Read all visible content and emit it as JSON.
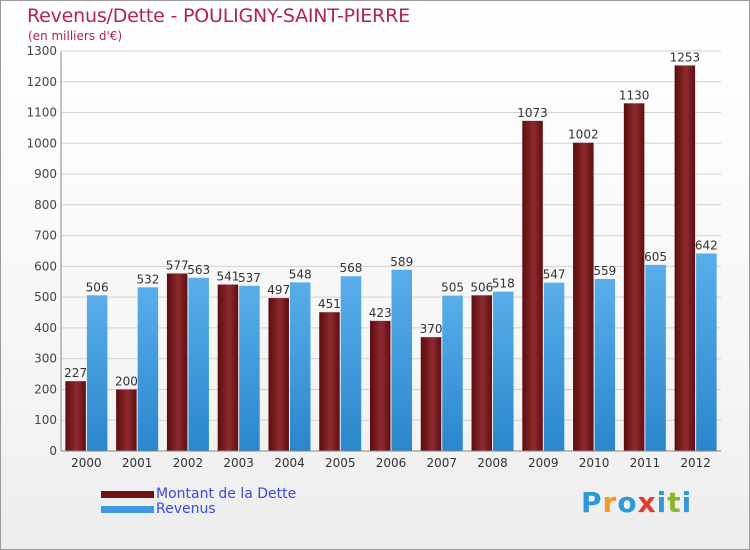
{
  "chart_data": {
    "type": "bar",
    "title": "Revenus/Dette - POULIGNY-SAINT-PIERRE",
    "subtitle": "(en milliers d'€)",
    "xlabel": "",
    "ylabel": "",
    "categories": [
      "2000",
      "2001",
      "2002",
      "2003",
      "2004",
      "2005",
      "2006",
      "2007",
      "2008",
      "2009",
      "2010",
      "2011",
      "2012"
    ],
    "series": [
      {
        "name": "Montant de la Dette",
        "color": "#6e1216",
        "values": [
          227,
          200,
          577,
          541,
          497,
          451,
          423,
          370,
          506,
          1073,
          1002,
          1130,
          1253
        ]
      },
      {
        "name": "Revenus",
        "color": "#3f9ae2",
        "values": [
          506,
          532,
          563,
          537,
          548,
          568,
          589,
          505,
          518,
          547,
          559,
          605,
          642
        ]
      }
    ],
    "ylim": [
      0,
      1300
    ],
    "yticks": [
      0,
      100,
      200,
      300,
      400,
      500,
      600,
      700,
      800,
      900,
      1000,
      1100,
      1200,
      1300
    ],
    "grid": true,
    "legend": "bottom-left"
  },
  "logo": {
    "letters": [
      "P",
      "r",
      "o",
      "x",
      "i",
      "t",
      "i"
    ],
    "colors": [
      "#2c9ad6",
      "#f39a1f",
      "#2c9ad6",
      "#e83a2c",
      "#2c9ad6",
      "#88b82d",
      "#2c9ad6"
    ]
  }
}
